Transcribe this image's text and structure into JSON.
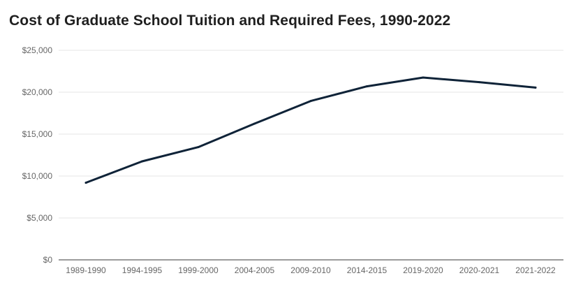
{
  "chart_data": {
    "type": "line",
    "title": "Cost of Graduate School Tuition and Required Fees, 1990-2022",
    "xlabel": "",
    "ylabel": "",
    "categories": [
      "1989-1990",
      "1994-1995",
      "1999-2000",
      "2004-2005",
      "2009-2010",
      "2014-2015",
      "2019-2020",
      "2020-2021",
      "2021-2022"
    ],
    "series": [
      {
        "name": "Tuition and Required Fees",
        "values": [
          9200,
          11750,
          13450,
          16250,
          18950,
          20700,
          21750,
          21200,
          20550
        ],
        "color": "#0f2338"
      }
    ],
    "ylim": [
      0,
      25000
    ],
    "yticks": [
      0,
      5000,
      10000,
      15000,
      20000,
      25000
    ],
    "ytick_labels": [
      "$0",
      "$5,000",
      "$10,000",
      "$15,000",
      "$20,000",
      "$25,000"
    ],
    "grid": true,
    "legend": "none"
  }
}
